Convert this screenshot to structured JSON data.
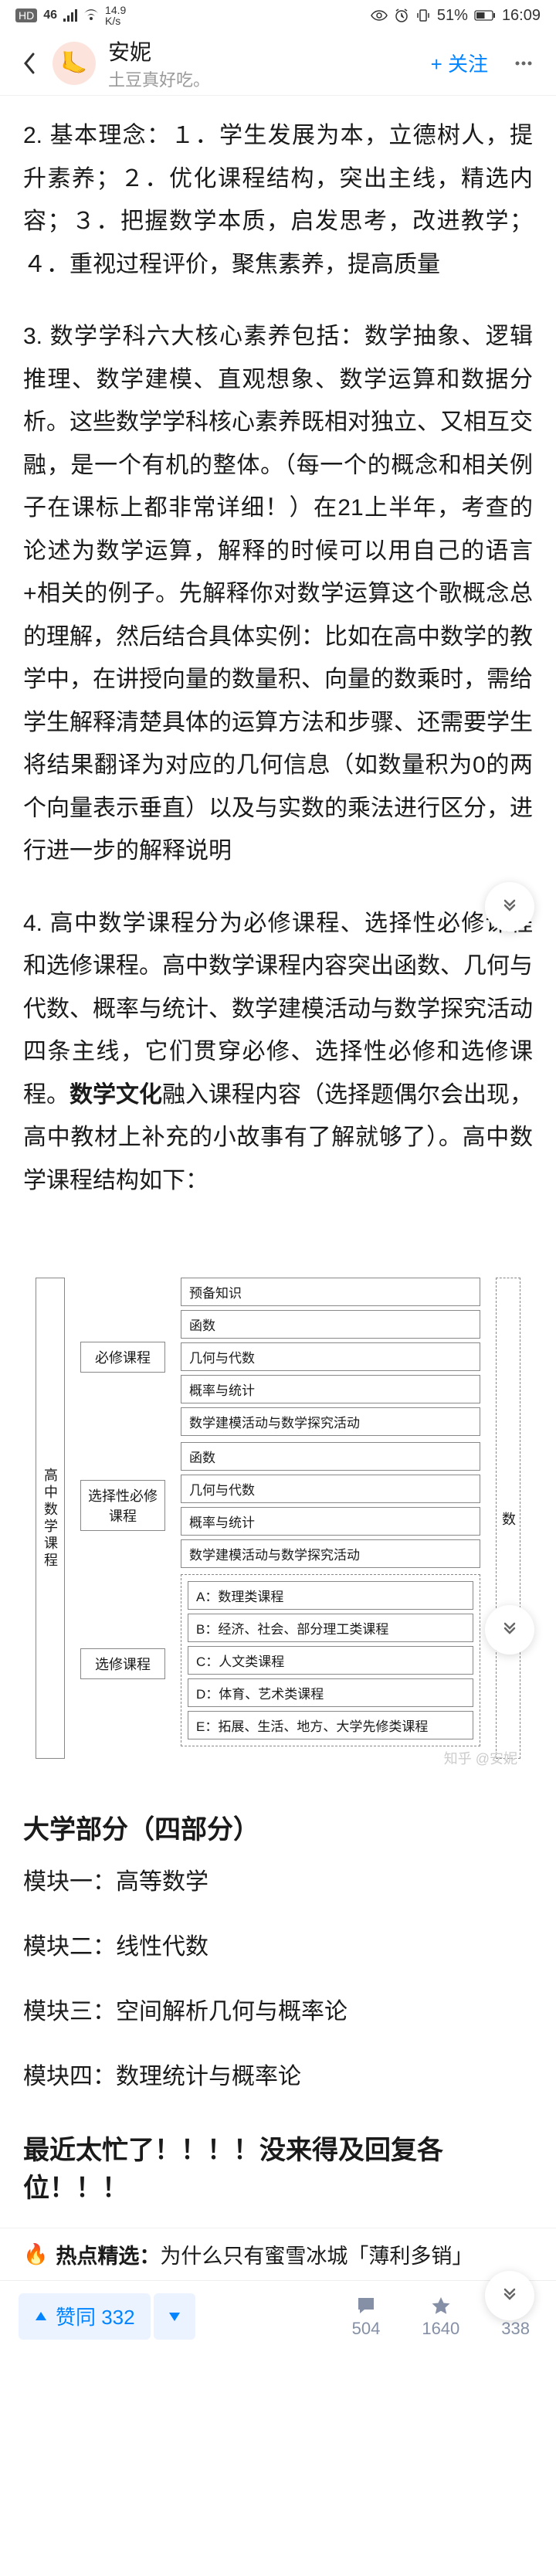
{
  "status": {
    "badge_hd": "HD",
    "signal": "46",
    "wifi_icon": "wifi",
    "net_speed": "14.9\nK/s",
    "eye": "⊘",
    "alarm": "⏰",
    "vibrate": "📳",
    "battery_pct": "51%",
    "battery_icon": "▮",
    "time": "16:09"
  },
  "nav": {
    "author_name": "安妮",
    "author_sub": "土豆真好吃。",
    "follow": "+ 关注",
    "avatar_emoji": "🦶"
  },
  "content": {
    "p2": "2. 基本理念：１．学生发展为本，立德树人，提升素养；２．优化课程结构，突出主线，精选内容；３．把握数学本质，启发思考，改进教学；４．重视过程评价，聚焦素养，提高质量",
    "p3": "3. 数学学科六大核心素养包括：数学抽象、逻辑推理、数学建模、直观想象、数学运算和数据分析。这些数学学科核心素养既相对独立、又相互交融，是一个有机的整体。（每一个的概念和相关例子在课标上都非常详细！）在21上半年，考查的论述为数学运算，解释的时候可以用自己的语言+相关的例子。先解释你对数学运算这个歌概念总的理解，然后结合具体实例：比如在高中数学的教学中，在讲授向量的数量积、向量的数乘时，需给学生解释清楚具体的运算方法和步骤、还需要学生将结果翻译为对应的几何信息（如数量积为0的两个向量表示垂直）以及与实数的乘法进行区分，进行进一步的解释说明",
    "p4_pre": "4. 高中数学课程分为必修课程、选择性必修课程和选修课程。高中数学课程内容突出函数、几何与代数、概率与统计、数学建模活动与数学探究活动四条主线，它们贯穿必修、选择性必修和选修课程。",
    "p4_bold": "数学文化",
    "p4_post": "融入课程内容（选择题偶尔会出现，高中教材上补充的小故事有了解就够了）。高中数学课程结构如下："
  },
  "diagram": {
    "root": "高中数学课程",
    "g1_label": "必修课程",
    "g1_items": [
      "预备知识",
      "函数",
      "几何与代数",
      "概率与统计",
      "数学建模活动与数学探究活动"
    ],
    "g2_label": "选择性必修课程",
    "g2_items": [
      "函数",
      "几何与代数",
      "概率与统计",
      "数学建模活动与数学探究活动"
    ],
    "g3_label": "选修课程",
    "g3_items": [
      "A：数理类课程",
      "B：经济、社会、部分理工类课程",
      "C：人文类课程",
      "D：体育、艺术类课程",
      "E：拓展、生活、地方、大学先修类课程"
    ],
    "right": "数",
    "watermark": "知乎 @安妮"
  },
  "uni": {
    "title": "大学部分（四部分）",
    "m1": "模块一：高等数学",
    "m2": "模块二：线性代数",
    "m3": "模块三：空间解析几何与概率论",
    "m4": "模块四：数理统计与概率论"
  },
  "busy": "最近太忙了！！！！没来得及回复各位！！！",
  "hot": {
    "label": "热点精选：",
    "text": "为什么只有蜜雪冰城「薄利多销」"
  },
  "bottom": {
    "upvote": "赞同 332",
    "comments": "504",
    "favs": "1640",
    "likes": "338"
  },
  "colors": {
    "primary": "#0084ff",
    "text": "#1a1a1a",
    "muted": "#8590a6"
  }
}
